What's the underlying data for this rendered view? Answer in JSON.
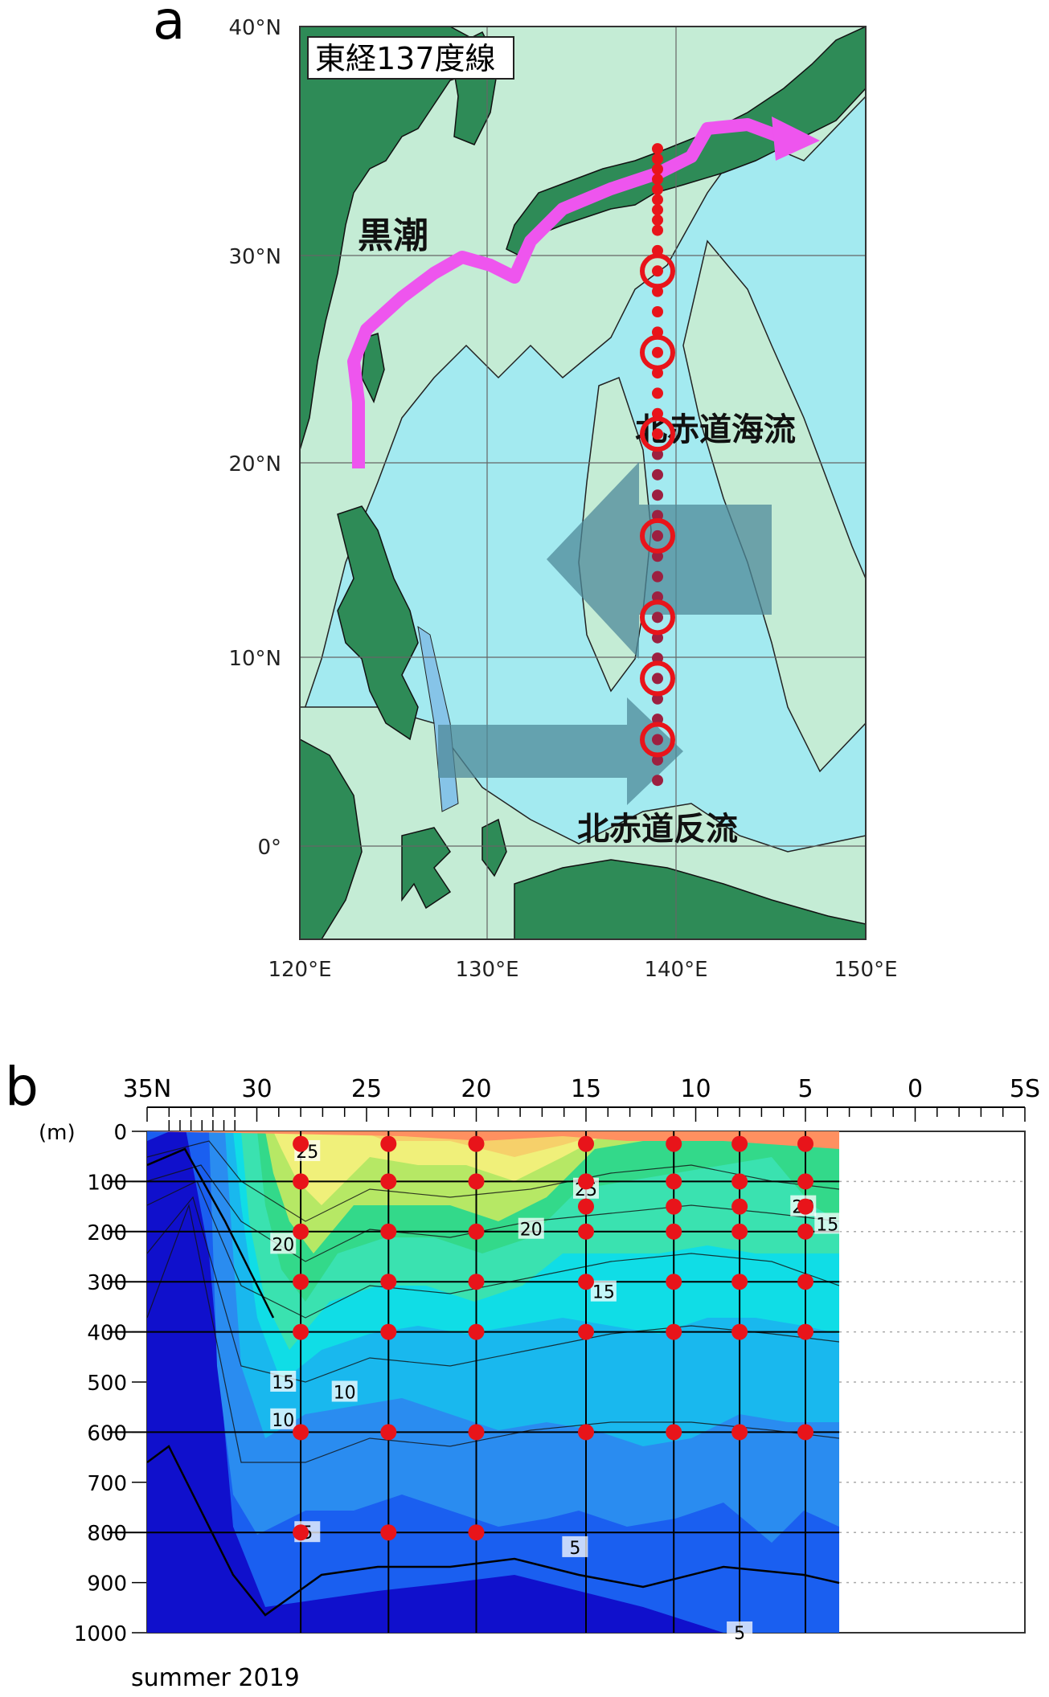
{
  "panel_a": {
    "letter": "a",
    "box_label": "東経137度線",
    "lat_ticks": [
      "40°N",
      "30°N",
      "20°N",
      "10°N",
      "0°"
    ],
    "lon_ticks": [
      "120°E",
      "130°E",
      "140°E",
      "150°E"
    ],
    "labels": {
      "kuroshio": "黒潮",
      "nec": "北赤道海流",
      "necc": "北赤道反流"
    },
    "colors": {
      "land": "#2e8b57",
      "deep": "#a3eaf0",
      "shelf": "#c4ecd5",
      "kuroshio": "#ee55ee",
      "current_arrow": "#4f8a99",
      "station": "#e8141a"
    },
    "station_lats": [
      34,
      33.5,
      33,
      32.5,
      32,
      31.5,
      31,
      30.5,
      30,
      29,
      28,
      27,
      26,
      25,
      24,
      23,
      22,
      21,
      20,
      19,
      18,
      17,
      16,
      15,
      14,
      13,
      12,
      11,
      10,
      9,
      8,
      7,
      6,
      5,
      4,
      3
    ],
    "highlight_lats": [
      28,
      24,
      20,
      15,
      11,
      8,
      5
    ]
  },
  "panel_b": {
    "letter": "b",
    "lat_ticks": [
      "35N",
      "30",
      "25",
      "20",
      "15",
      "10",
      "5",
      "0",
      "5S"
    ],
    "depth_unit": "(m)",
    "depth_ticks": [
      "0",
      "100",
      "200",
      "300",
      "400",
      "500",
      "600",
      "700",
      "800",
      "900",
      "1000"
    ],
    "caption": "summer 2019",
    "contour_labels": [
      "25",
      "20",
      "15",
      "10",
      "5",
      "25",
      "20",
      "15",
      "10",
      "5",
      "20",
      "15",
      "5"
    ],
    "colors": {
      "warm": "#ff9060",
      "deep": "#1010cc",
      "sample_point": "#e8141a"
    },
    "sample_points": [
      {
        "lat": 28,
        "depths": [
          25,
          100,
          200,
          300,
          400,
          600,
          800
        ]
      },
      {
        "lat": 24,
        "depths": [
          25,
          100,
          200,
          300,
          400,
          600,
          800
        ]
      },
      {
        "lat": 20,
        "depths": [
          25,
          100,
          200,
          300,
          400,
          600,
          800
        ]
      },
      {
        "lat": 15,
        "depths": [
          25,
          100,
          150,
          200,
          300,
          400,
          600
        ]
      },
      {
        "lat": 11,
        "depths": [
          25,
          100,
          150,
          200,
          300,
          400,
          600
        ]
      },
      {
        "lat": 8,
        "depths": [
          25,
          100,
          150,
          200,
          300,
          400,
          600
        ]
      },
      {
        "lat": 5,
        "depths": [
          25,
          100,
          150,
          200,
          300,
          400,
          600
        ]
      }
    ]
  }
}
